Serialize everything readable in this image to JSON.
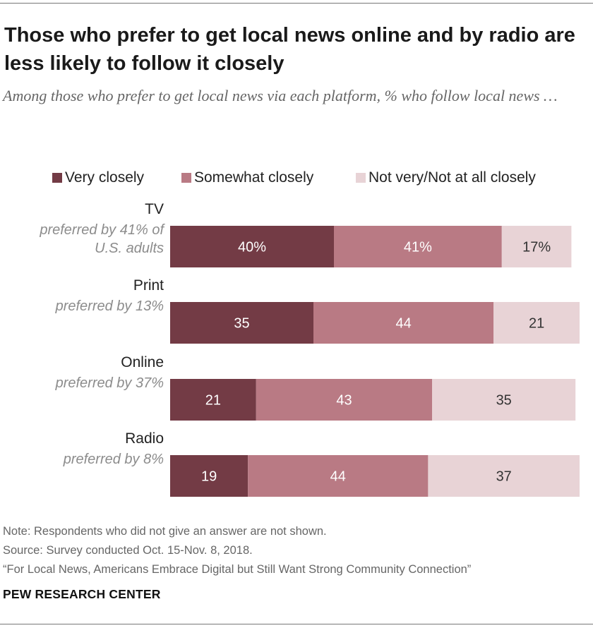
{
  "title": "Those who prefer to get local news online and by radio are less likely to follow it closely",
  "subtitle": "Among those who prefer to get local news via each platform, % who follow local news …",
  "colors": {
    "very": "#733b45",
    "somewhat": "#b97a84",
    "notvery": "#e8d3d6",
    "label_dark": "#ffffff",
    "label_light": "#333333"
  },
  "chart_data": {
    "type": "bar",
    "orientation": "horizontal",
    "stacked": true,
    "categories": [
      {
        "label": "TV",
        "sublabel": "preferred by 41% of U.S. adults"
      },
      {
        "label": "Print",
        "sublabel": "preferred by 13%"
      },
      {
        "label": "Online",
        "sublabel": "preferred by 37%"
      },
      {
        "label": "Radio",
        "sublabel": "preferred by 8%"
      }
    ],
    "series": [
      {
        "name": "Very closely",
        "values": [
          40,
          35,
          21,
          19
        ],
        "labels": [
          "40%",
          "35",
          "21",
          "19"
        ]
      },
      {
        "name": "Somewhat closely",
        "values": [
          41,
          44,
          43,
          44
        ],
        "labels": [
          "41%",
          "44",
          "43",
          "44"
        ]
      },
      {
        "name": "Not very/Not at all closely",
        "values": [
          17,
          21,
          35,
          37
        ],
        "labels": [
          "17%",
          "21",
          "35",
          "37"
        ]
      }
    ],
    "xlim": [
      0,
      100
    ],
    "grid": false,
    "legend": "top"
  },
  "notes": {
    "note": "Note: Respondents who did not give an answer are not shown.",
    "source": "Source: Survey conducted Oct. 15-Nov. 8, 2018.",
    "report": "“For Local News, Americans Embrace Digital but Still Want Strong Community Connection”"
  },
  "brand": "PEW RESEARCH CENTER"
}
